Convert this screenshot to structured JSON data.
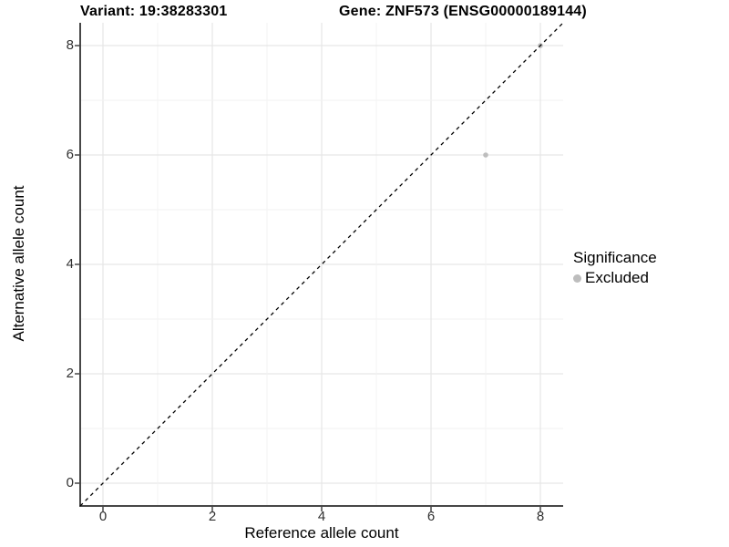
{
  "titles": {
    "variant": "Variant: 19:38283301",
    "gene": "Gene: ZNF573 (ENSG00000189144)"
  },
  "colors": {
    "background": "#ffffff",
    "axis_line": "#474747",
    "tick_label": "#303030",
    "grid_major": "#e6e6e6",
    "grid_minor": "#f2f2f2",
    "identity_line": "#000000",
    "excluded_point": "#bdbdbd"
  },
  "chart_data": {
    "type": "scatter",
    "title_left": "Variant: 19:38283301",
    "title_right": "Gene: ZNF573 (ENSG00000189144)",
    "xlabel": "Reference allele count",
    "ylabel": "Alternative allele count",
    "xlim": [
      -0.42,
      8.42
    ],
    "ylim": [
      -0.42,
      8.42
    ],
    "x_ticks": [
      0,
      2,
      4,
      6,
      8
    ],
    "y_ticks": [
      0,
      2,
      4,
      6,
      8
    ],
    "grid": "major-at-even-minor-at-odd-integers",
    "reference_line": {
      "kind": "identity y=x",
      "style": "dashed",
      "color": "#000000"
    },
    "series": [
      {
        "name": "Excluded",
        "color": "#bdbdbd",
        "points": [
          {
            "x": 7,
            "y": 6
          },
          {
            "x": 8,
            "y": 8
          }
        ]
      }
    ],
    "legend": {
      "title": "Significance",
      "position": "right",
      "items": [
        {
          "label": "Excluded",
          "color": "#bdbdbd"
        }
      ]
    }
  }
}
